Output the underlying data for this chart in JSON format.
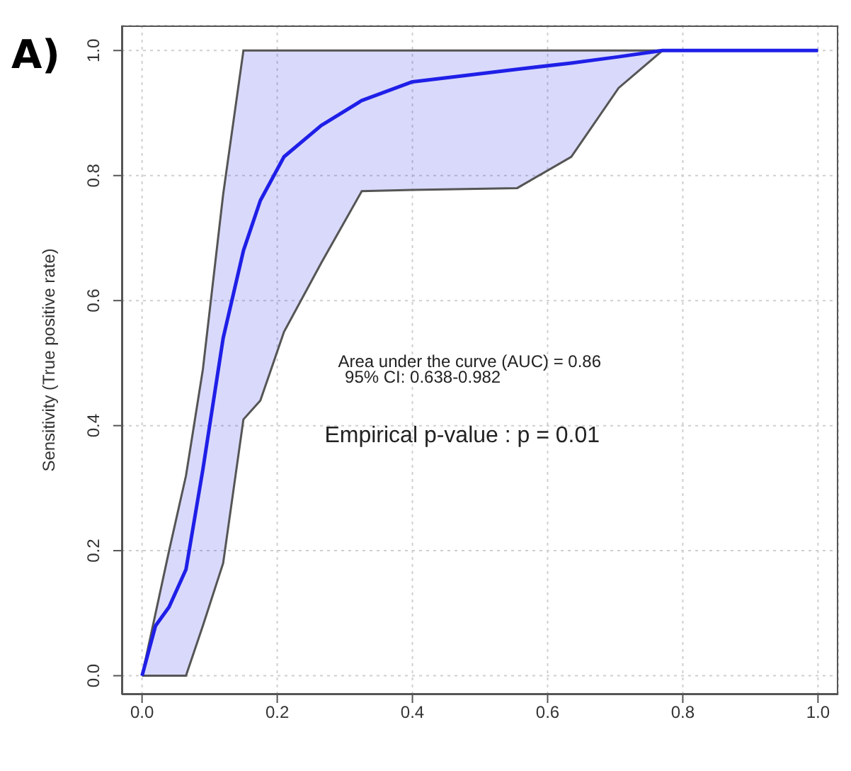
{
  "chart_data": {
    "type": "line",
    "title": "A)",
    "ylabel": "Sensitivity (True positive rate)",
    "x": [
      0,
      0.02,
      0.04,
      0.065,
      0.09,
      0.12,
      0.15,
      0.175,
      0.21,
      0.265,
      0.325,
      0.4,
      0.555,
      0.635,
      0.705,
      0.77,
      1.0
    ],
    "series": [
      {
        "color": "#1f1fe8",
        "values": [
          0,
          0.08,
          0.11,
          0.17,
          0.33,
          0.54,
          0.68,
          0.76,
          0.83,
          0.88,
          0.92,
          0.95,
          0.97,
          0.98,
          0.99,
          1,
          1
        ],
        "lower": [
          0,
          0,
          0,
          0,
          0.08,
          0.18,
          0.41,
          0.44,
          0.55,
          0.66,
          0.775,
          0.777,
          0.78,
          0.83,
          0.94,
          1,
          1
        ],
        "upper": [
          0,
          0.1,
          0.2,
          0.32,
          0.49,
          0.77,
          1,
          1,
          1,
          1,
          1,
          1,
          1,
          1,
          1,
          1,
          1
        ]
      }
    ],
    "xlim": [
      -0.03,
      1.03
    ],
    "ylim": [
      -0.03,
      1.04
    ],
    "xticks": [
      {
        "value": 0,
        "label": "0.0"
      },
      {
        "value": 0.2,
        "label": "0.2"
      },
      {
        "value": 0.4,
        "label": "0.4"
      },
      {
        "value": 0.6,
        "label": "0.6"
      },
      {
        "value": 0.8,
        "label": "0.8"
      },
      {
        "value": 1,
        "label": "1.0"
      }
    ],
    "yticks": [
      {
        "value": 0,
        "label": "0.0"
      },
      {
        "value": 0.2,
        "label": "0.2"
      },
      {
        "value": 0.4,
        "label": "0.4"
      },
      {
        "value": 0.6,
        "label": "0.6"
      },
      {
        "value": 0.8,
        "label": "0.8"
      },
      {
        "value": 1,
        "label": "1.0"
      }
    ],
    "annotations": [
      "Area under the curve (AUC) = 0.86",
      "95% CI: 0.638-0.982",
      "Empirical p-value : p = 0.01"
    ],
    "grid": true,
    "legend": false,
    "marker": "none",
    "line_style": "solid"
  }
}
